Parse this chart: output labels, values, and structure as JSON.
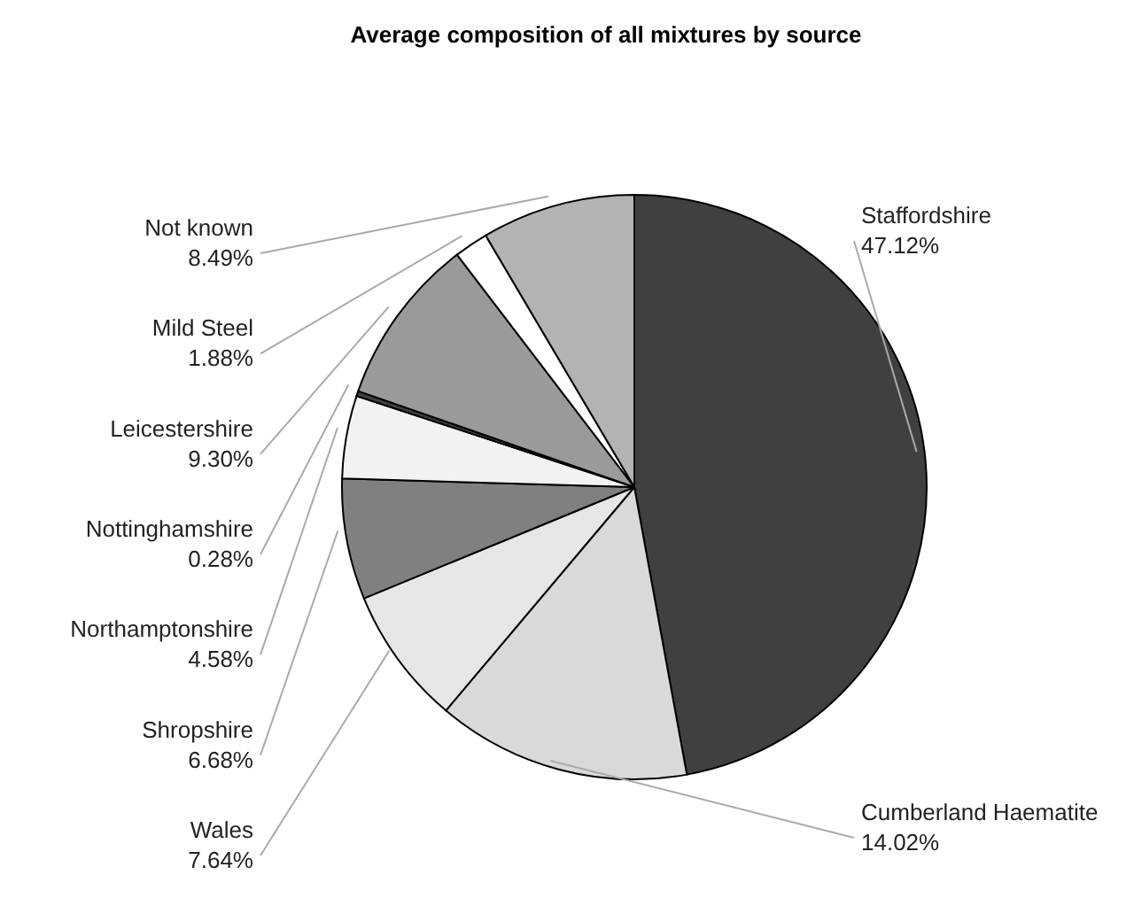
{
  "chart_data": {
    "type": "pie",
    "title": "Average composition of all mixtures by source",
    "categories": [
      "Staffordshire",
      "Cumberland Haematite",
      "Wales",
      "Shropshire",
      "Northamptonshire",
      "Nottinghamshire",
      "Leicestershire",
      "Mild Steel",
      "Not known"
    ],
    "values": [
      47.12,
      14.02,
      7.64,
      6.68,
      4.58,
      0.28,
      9.3,
      1.88,
      8.49
    ],
    "value_labels": [
      "47.12%",
      "14.02%",
      "7.64%",
      "6.68%",
      "4.58%",
      "0.28%",
      "9.30%",
      "1.88%",
      "8.49%"
    ],
    "colors": [
      "#404040",
      "#d9d9d9",
      "#e6e6e6",
      "#808080",
      "#f2f2f2",
      "#404040",
      "#9a9a9a",
      "#ffffff",
      "#b3b3b3"
    ]
  }
}
